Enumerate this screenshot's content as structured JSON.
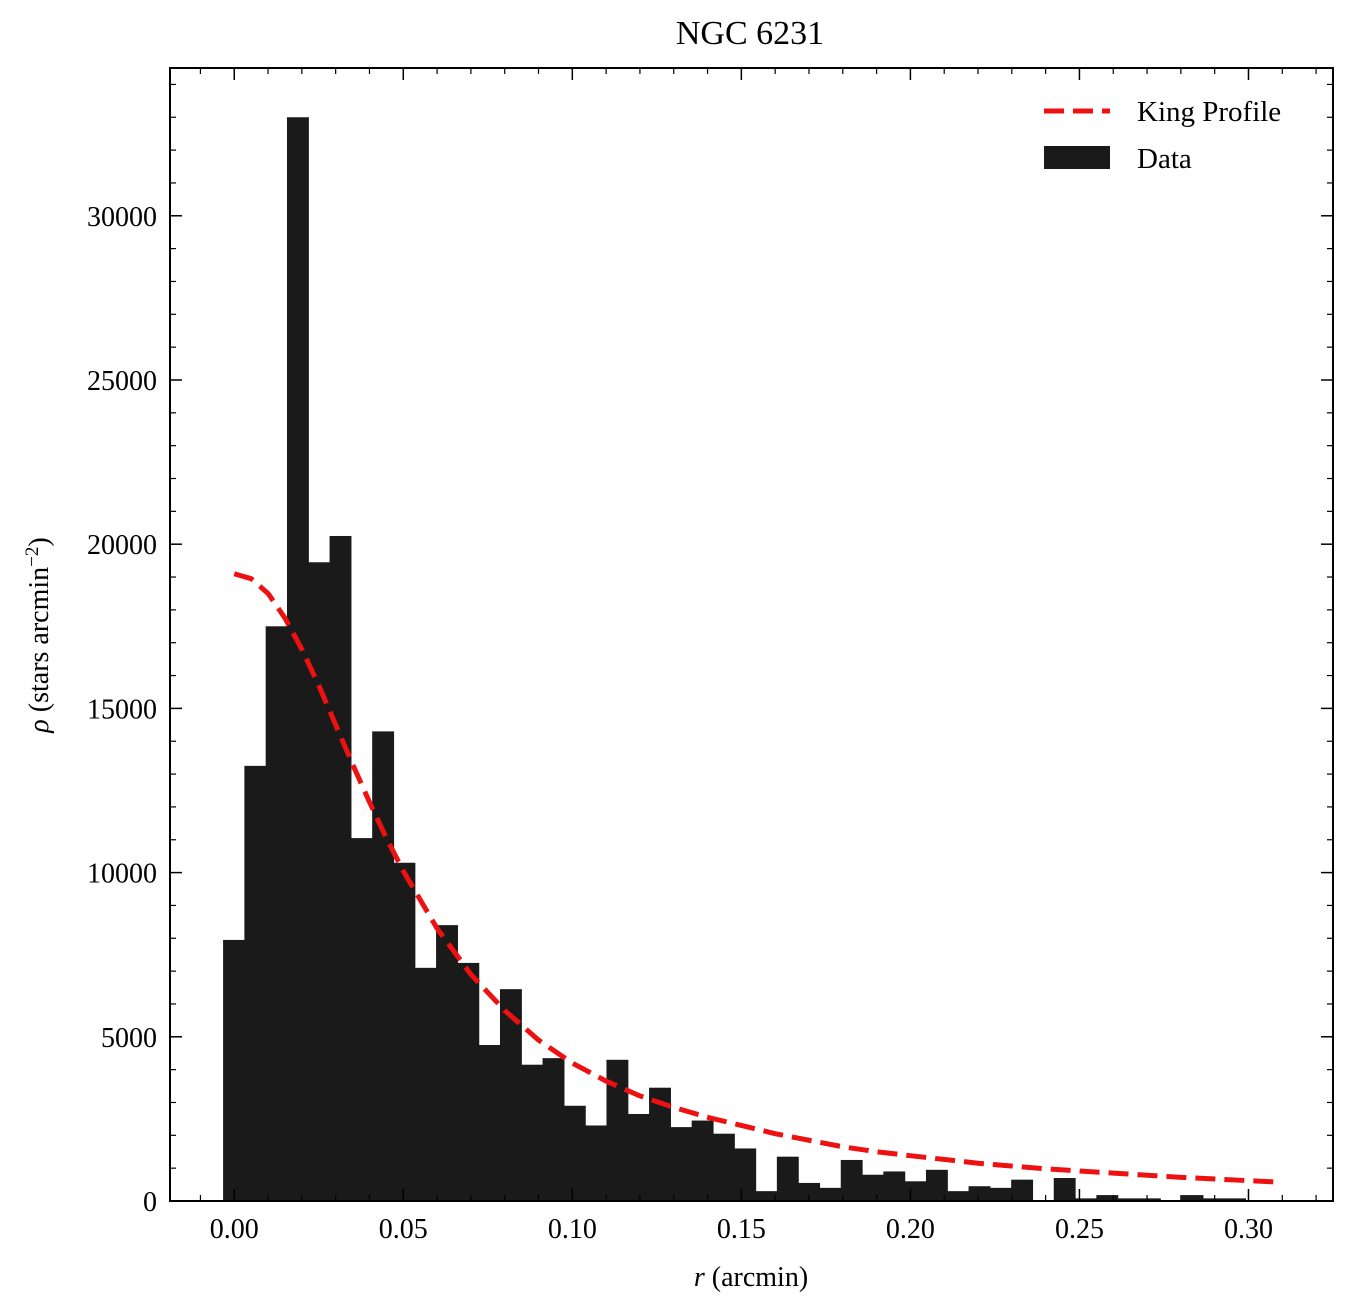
{
  "chart_data": {
    "type": "bar",
    "title": "NGC 6231",
    "xlabel_symbol": "r",
    "xlabel_unit": " (arcmin)",
    "ylabel_symbol": "ρ",
    "ylabel_unit_main": " (stars arcmin",
    "ylabel_unit_exp": "−2",
    "ylabel_unit_close": ")",
    "xlim": [
      -0.019,
      0.325
    ],
    "ylim": [
      0,
      34500
    ],
    "x_ticks": [
      0.0,
      0.05,
      0.1,
      0.15,
      0.2,
      0.25,
      0.3
    ],
    "x_tick_labels": [
      "0.00",
      "0.05",
      "0.10",
      "0.15",
      "0.20",
      "0.25",
      "0.30"
    ],
    "y_ticks": [
      0,
      5000,
      10000,
      15000,
      20000,
      25000,
      30000
    ],
    "y_tick_labels": [
      "0",
      "5000",
      "10000",
      "15000",
      "20000",
      "25000",
      "30000"
    ],
    "grid": false,
    "legend": {
      "position": "top-right",
      "entries": [
        {
          "label": "King Profile",
          "style": "dashed-line",
          "color": "#ee1111"
        },
        {
          "label": "Data",
          "style": "bar",
          "color": "#1a1a1a"
        }
      ]
    },
    "histogram": {
      "name": "Data",
      "color": "#1a1a1a",
      "bin_edges_start": -0.0033,
      "bin_width": 0.0063,
      "values": [
        7950,
        13250,
        17500,
        33000,
        19450,
        20250,
        11050,
        14300,
        10300,
        7100,
        8400,
        7250,
        4750,
        6450,
        4150,
        4350,
        2900,
        2300,
        4300,
        2650,
        3450,
        2250,
        2450,
        2050,
        1600,
        300,
        1350,
        550,
        400,
        1250,
        800,
        900,
        600,
        950,
        300,
        450,
        400,
        650,
        0,
        700,
        80,
        180,
        80,
        80,
        0,
        180,
        80,
        80,
        0,
        0
      ]
    },
    "king_profile": {
      "name": "King Profile",
      "color": "#ee1111",
      "x": [
        0.0,
        0.005,
        0.01,
        0.015,
        0.02,
        0.025,
        0.03,
        0.035,
        0.04,
        0.045,
        0.05,
        0.06,
        0.07,
        0.08,
        0.09,
        0.1,
        0.11,
        0.12,
        0.13,
        0.14,
        0.15,
        0.16,
        0.17,
        0.18,
        0.19,
        0.2,
        0.22,
        0.24,
        0.26,
        0.28,
        0.3,
        0.31
      ],
      "y": [
        19100,
        18950,
        18500,
        17750,
        16800,
        15700,
        14500,
        13300,
        12150,
        11050,
        10050,
        8300,
        6900,
        5800,
        4900,
        4200,
        3650,
        3200,
        2850,
        2550,
        2300,
        2050,
        1850,
        1650,
        1500,
        1380,
        1150,
        980,
        850,
        720,
        620,
        570
      ]
    }
  }
}
